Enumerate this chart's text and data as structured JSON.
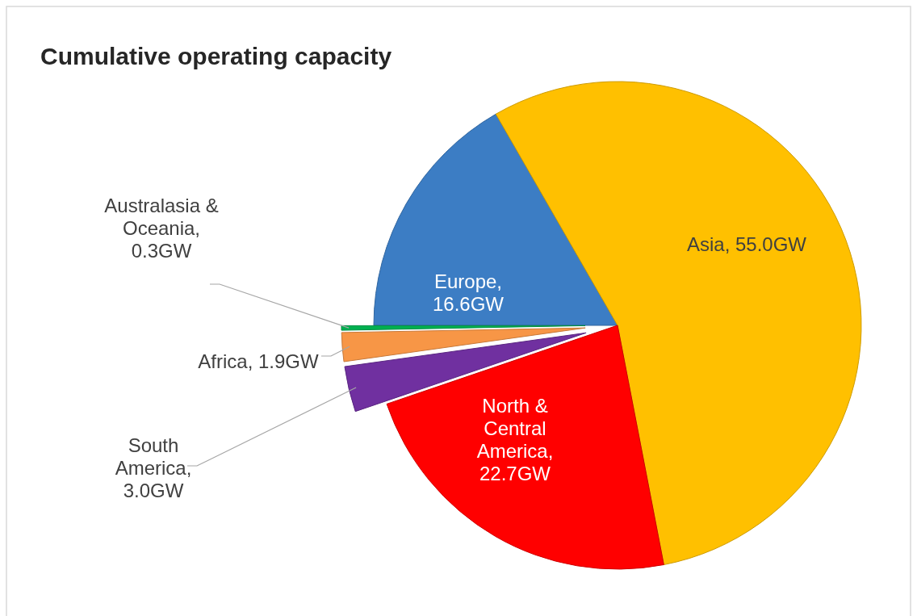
{
  "chart_data": {
    "type": "pie",
    "title": "Cumulative operating capacity",
    "categories": [
      "Europe",
      "Asia",
      "North & Central America",
      "South America",
      "Africa",
      "Australasia & Oceania"
    ],
    "values": [
      16.6,
      55.0,
      22.7,
      3.0,
      1.9,
      0.3
    ],
    "value_labels": [
      ", 16.6GW",
      ", 55.0GW",
      ", 22.7GW",
      ", 3.0GW",
      ", 1.9GW",
      ", 0.3GW"
    ],
    "colors": [
      "#3c7dc4",
      "#ffc000",
      "#ff0000",
      "#7030a0",
      "#f79646",
      "#00b050"
    ]
  }
}
